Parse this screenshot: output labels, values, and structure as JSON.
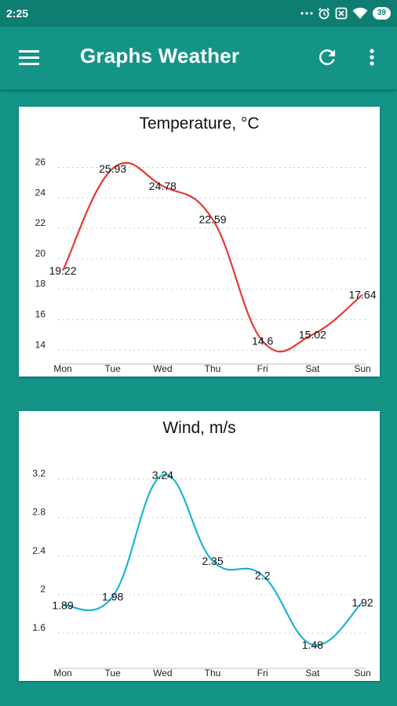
{
  "status_bar": {
    "time": "2:25",
    "battery": "39",
    "icons": [
      "dots-icon",
      "alarm-icon",
      "sim-icon",
      "wifi-icon",
      "battery-icon"
    ]
  },
  "app_bar": {
    "title": "Graphs Weather",
    "icons": [
      "menu-icon",
      "refresh-icon",
      "more-vert-icon"
    ]
  },
  "colors": {
    "primary": "#139487",
    "primary_dark": "#0f7e72",
    "temperature_line": "#e53935",
    "wind_line": "#1fb3d2"
  },
  "chart_data": [
    {
      "type": "line",
      "title": "Temperature, °C",
      "categories": [
        "Mon",
        "Tue",
        "Wed",
        "Thu",
        "Fri",
        "Sat",
        "Sun"
      ],
      "series": [
        {
          "values": [
            19.22,
            25.93,
            24.78,
            22.59,
            14.6,
            15.02,
            17.64
          ],
          "value_labels": [
            "19.22",
            "25.93",
            "24.78",
            "22.59",
            "14.6",
            "15.02",
            "17.64"
          ]
        }
      ],
      "yticks": [
        14,
        16,
        18,
        20,
        22,
        24,
        26
      ],
      "ytick_labels": [
        "14",
        "16",
        "18",
        "20",
        "22",
        "24",
        "26"
      ],
      "ylim": [
        13.5,
        26.8
      ],
      "grid": true,
      "color": "#e53935"
    },
    {
      "type": "line",
      "title": "Wind, m/s",
      "categories": [
        "Mon",
        "Tue",
        "Wed",
        "Thu",
        "Fri",
        "Sat",
        "Sun"
      ],
      "series": [
        {
          "values": [
            1.89,
            1.98,
            3.24,
            2.35,
            2.2,
            1.48,
            1.92
          ],
          "value_labels": [
            "1.89",
            "1.98",
            "3.24",
            "2.35",
            "2.2",
            "1.48",
            "1.92"
          ]
        }
      ],
      "yticks": [
        1.6,
        2,
        2.4,
        2.8,
        3.2
      ],
      "ytick_labels": [
        "1.6",
        "2",
        "2.4",
        "2.8",
        "3.2"
      ],
      "ylim": [
        1.3,
        3.4
      ],
      "grid": true,
      "color": "#1fb3d2"
    }
  ]
}
